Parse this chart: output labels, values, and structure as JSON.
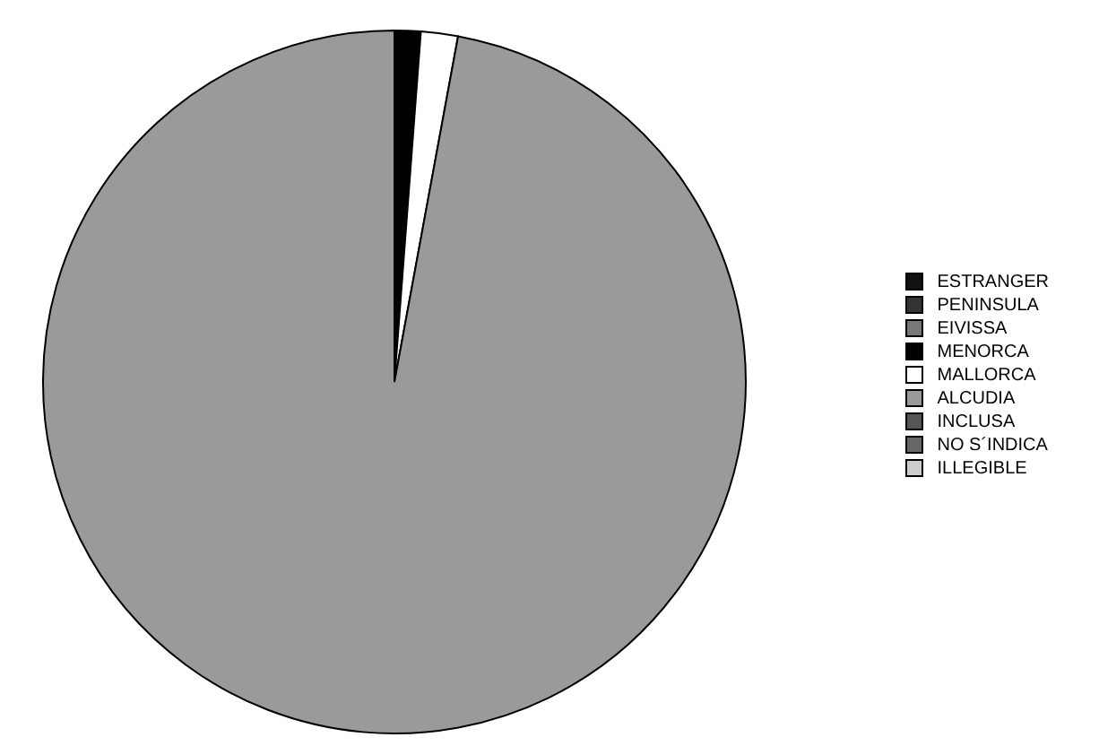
{
  "chart_data": {
    "type": "pie",
    "categories": [
      "ESTRANGER",
      "PENINSULA",
      "EIVISSA",
      "MENORCA",
      "MALLORCA",
      "ALCUDIA",
      "INCLUSA",
      "NO S´INDICA",
      "ILLEGIBLE"
    ],
    "values": [
      0,
      0,
      0,
      1.2,
      1.7,
      97.1,
      0,
      0,
      0
    ],
    "colors": [
      "#111111",
      "#333333",
      "#777777",
      "#000000",
      "#ffffff",
      "#9a9a9a",
      "#555555",
      "#666666",
      "#cccccc"
    ],
    "legend": "right"
  }
}
